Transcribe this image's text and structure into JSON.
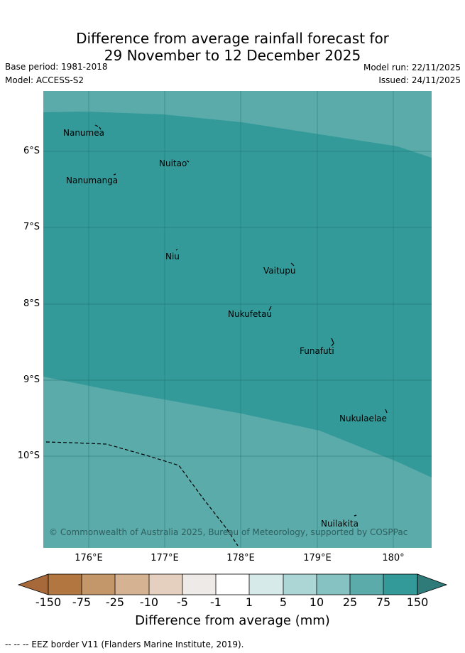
{
  "header": {
    "title_line1": "Difference from average rainfall forecast for",
    "title_line2": "29 November to 12 December 2025",
    "base_period": "Base period: 1981-2018",
    "model": "Model: ACCESS-S2",
    "model_run": "Model run: 22/11/2025",
    "issued": "Issued: 24/11/2025"
  },
  "map": {
    "lat_labels": [
      "6°S",
      "7°S",
      "8°S",
      "9°S",
      "10°S"
    ],
    "lon_labels": [
      "176°E",
      "177°E",
      "178°E",
      "179°E",
      "180°"
    ],
    "islands": [
      "Nanumea",
      "Nuitao",
      "Nanumanga",
      "Niu",
      "Vaitupu",
      "Nukufetau",
      "Funafuti",
      "Nukulaelae",
      "Nuilakita"
    ],
    "copyright": "© Commonwealth of Australia 2025, Bureau of Meteorology, supported by COSPPac",
    "colors": {
      "category_75_150": "#339a99",
      "category_25_75": "#5aabaa",
      "grid": "#1f6f6e",
      "eez": "#000000"
    }
  },
  "colorbar": {
    "labels": [
      "-150",
      "-75",
      "-25",
      "-10",
      "-5",
      "-1",
      "1",
      "5",
      "10",
      "25",
      "75",
      "150"
    ],
    "colors": [
      "#a8693a",
      "#b27740",
      "#c4976b",
      "#d5b392",
      "#e5d0bf",
      "#edeae7",
      "#ffffff",
      "#d5eae9",
      "#acd6d5",
      "#85c2c1",
      "#5aabaa",
      "#339a99",
      "#2e7b7a"
    ],
    "title": "Difference from average (mm)"
  },
  "footnote": "-- -- -- EEZ border V11 (Flanders Marine Institute, 2019)."
}
